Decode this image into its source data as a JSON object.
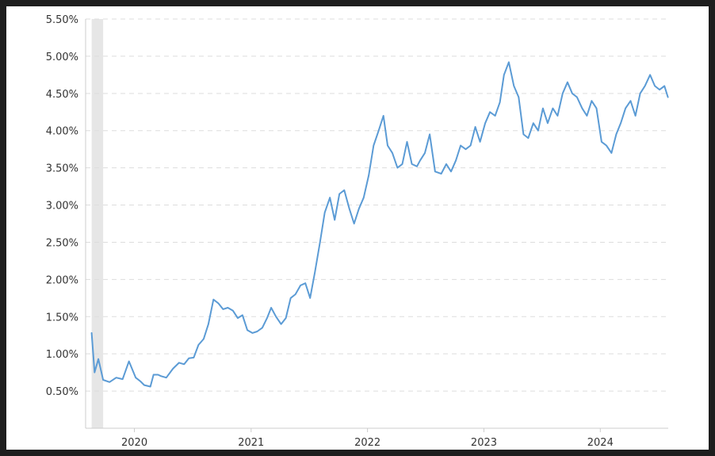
{
  "chart_data": {
    "type": "line",
    "title": "",
    "xlabel": "",
    "ylabel": "",
    "ylim": [
      0,
      5.5
    ],
    "xlim": [
      "2019-08",
      "2024-08"
    ],
    "yticks": [
      0.5,
      1.0,
      1.5,
      2.0,
      2.5,
      3.0,
      3.5,
      4.0,
      4.5,
      5.0,
      5.5
    ],
    "ytick_labels": [
      "0.50%",
      "1.00%",
      "1.50%",
      "2.00%",
      "2.50%",
      "3.00%",
      "3.50%",
      "4.00%",
      "4.50%",
      "5.00%",
      "5.50%"
    ],
    "xticks": [
      "2020-01-01",
      "2021-01-01",
      "2022-01-01",
      "2023-01-01",
      "2024-01-01"
    ],
    "xtick_labels": [
      "2020",
      "2021",
      "2022",
      "2023",
      "2024"
    ],
    "grid": true,
    "grid_style": "dashed",
    "shaded_period": {
      "start": "2019-08-20",
      "end": "2019-09-25"
    },
    "line_color": "#5b9bd5",
    "shade_color": "#e6e6e6",
    "series": [
      {
        "x": [
          "2019-08-20",
          "2019-08-29",
          "2019-09-10",
          "2019-09-25",
          "2019-10-15",
          "2019-11-05",
          "2019-11-25",
          "2019-12-15",
          "2020-01-05",
          "2020-01-20",
          "2020-02-01",
          "2020-02-20",
          "2020-03-01",
          "2020-03-15",
          "2020-03-25",
          "2020-04-10",
          "2020-05-01",
          "2020-05-20",
          "2020-06-05",
          "2020-06-20",
          "2020-07-05",
          "2020-07-20",
          "2020-08-05",
          "2020-08-20",
          "2020-09-05",
          "2020-09-20",
          "2020-10-05",
          "2020-10-20",
          "2020-11-05",
          "2020-11-20",
          "2020-12-05",
          "2020-12-20",
          "2021-01-05",
          "2021-01-20",
          "2021-02-05",
          "2021-02-20",
          "2021-03-05",
          "2021-03-20",
          "2021-04-05",
          "2021-04-20",
          "2021-05-05",
          "2021-05-20",
          "2021-06-05",
          "2021-06-20",
          "2021-07-05",
          "2021-07-20",
          "2021-08-05",
          "2021-08-20",
          "2021-09-05",
          "2021-09-20",
          "2021-10-05",
          "2021-10-20",
          "2021-11-05",
          "2021-11-20",
          "2021-12-05",
          "2021-12-20",
          "2022-01-05",
          "2022-01-20",
          "2022-02-05",
          "2022-02-20",
          "2022-03-05",
          "2022-03-20",
          "2022-04-05",
          "2022-04-20",
          "2022-05-05",
          "2022-05-20",
          "2022-06-05",
          "2022-06-15",
          "2022-06-30",
          "2022-07-15",
          "2022-08-01",
          "2022-08-20",
          "2022-09-05",
          "2022-09-20",
          "2022-10-05",
          "2022-10-20",
          "2022-11-05",
          "2022-11-20",
          "2022-12-05",
          "2022-12-20",
          "2023-01-05",
          "2023-01-20",
          "2023-02-05",
          "2023-02-20",
          "2023-03-05",
          "2023-03-20",
          "2023-04-05",
          "2023-04-20",
          "2023-05-05",
          "2023-05-20",
          "2023-06-05",
          "2023-06-20",
          "2023-07-05",
          "2023-07-20",
          "2023-08-05",
          "2023-08-20",
          "2023-09-05",
          "2023-09-20",
          "2023-10-05",
          "2023-10-20",
          "2023-11-05",
          "2023-11-20",
          "2023-12-05",
          "2023-12-20",
          "2024-01-05",
          "2024-01-20",
          "2024-02-05",
          "2024-02-20",
          "2024-03-05",
          "2024-03-20",
          "2024-04-05",
          "2024-04-20",
          "2024-05-05",
          "2024-05-20",
          "2024-06-05",
          "2024-06-20",
          "2024-07-05",
          "2024-07-20",
          "2024-07-31"
        ],
        "values": [
          1.28,
          0.75,
          0.93,
          0.65,
          0.62,
          0.68,
          0.66,
          0.9,
          0.68,
          0.63,
          0.58,
          0.56,
          0.72,
          0.72,
          0.7,
          0.68,
          0.8,
          0.88,
          0.86,
          0.94,
          0.95,
          1.12,
          1.2,
          1.4,
          1.73,
          1.68,
          1.6,
          1.62,
          1.58,
          1.48,
          1.52,
          1.32,
          1.28,
          1.3,
          1.35,
          1.48,
          1.62,
          1.5,
          1.4,
          1.48,
          1.75,
          1.8,
          1.92,
          1.95,
          1.75,
          2.1,
          2.5,
          2.9,
          3.1,
          2.8,
          3.15,
          3.2,
          2.95,
          2.75,
          2.95,
          3.1,
          3.4,
          3.8,
          4.0,
          4.2,
          3.8,
          3.7,
          3.5,
          3.55,
          3.85,
          3.55,
          3.52,
          3.6,
          3.7,
          3.95,
          3.45,
          3.42,
          3.55,
          3.45,
          3.6,
          3.8,
          3.75,
          3.8,
          4.05,
          3.85,
          4.1,
          4.25,
          4.2,
          4.38,
          4.75,
          4.92,
          4.6,
          4.45,
          3.95,
          3.9,
          4.1,
          4.0,
          4.3,
          4.1,
          4.3,
          4.2,
          4.5,
          4.65,
          4.5,
          4.45,
          4.3,
          4.2,
          4.4,
          4.3,
          3.85,
          3.8,
          3.7,
          3.95,
          4.1,
          4.3,
          4.4,
          4.2,
          4.5,
          4.6,
          4.75,
          4.6,
          4.55,
          4.6,
          4.45
        ]
      }
    ]
  }
}
